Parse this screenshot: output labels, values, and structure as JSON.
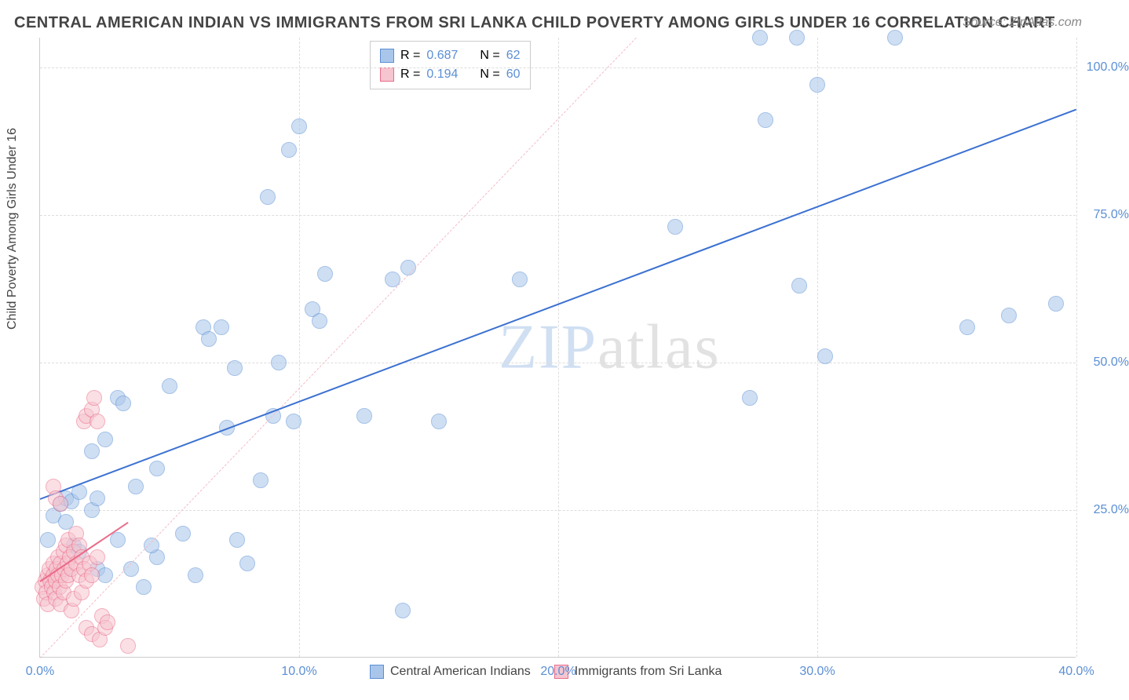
{
  "title": "CENTRAL AMERICAN INDIAN VS IMMIGRANTS FROM SRI LANKA CHILD POVERTY AMONG GIRLS UNDER 16 CORRELATION CHART",
  "source": "Source: ZipAtlas.com",
  "ylabel": "Child Poverty Among Girls Under 16",
  "watermark_a": "ZIP",
  "watermark_b": "atlas",
  "chart": {
    "type": "scatter",
    "xlim": [
      0,
      40
    ],
    "ylim": [
      0,
      105
    ],
    "xtick_step": 10,
    "ytick_step": 25,
    "xticks": [
      "0.0%",
      "10.0%",
      "20.0%",
      "30.0%",
      "40.0%"
    ],
    "yticks": [
      "25.0%",
      "50.0%",
      "75.0%",
      "100.0%"
    ],
    "ytick_values": [
      25,
      50,
      75,
      100
    ],
    "background_color": "#ffffff",
    "grid_color": "#dddddd",
    "axis_color": "#cccccc",
    "tick_label_color": "#5b8fd4",
    "point_radius": 10,
    "point_opacity": 0.55,
    "series": [
      {
        "name": "Central American Indians",
        "color_fill": "#a9c6ea",
        "color_stroke": "#5b8fd4",
        "r_label": "R =",
        "r_value": "0.687",
        "n_label": "N =",
        "n_value": "62",
        "trend": {
          "x1": 0,
          "y1": 27,
          "x2": 40,
          "y2": 93,
          "width": 2.5,
          "dash": "solid",
          "color": "#3b71d1"
        },
        "ref_line": {
          "x1": 0,
          "y1": 0,
          "x2": 23,
          "y2": 105,
          "width": 1,
          "dash": "dashed",
          "color": "#f4bcc6"
        },
        "points": [
          [
            0.3,
            20
          ],
          [
            0.5,
            24
          ],
          [
            0.8,
            26
          ],
          [
            1.0,
            27
          ],
          [
            1.2,
            26.5
          ],
          [
            1.0,
            23
          ],
          [
            1.5,
            28
          ],
          [
            1.3,
            19
          ],
          [
            1.5,
            18
          ],
          [
            2.0,
            25
          ],
          [
            2.2,
            27
          ],
          [
            2.0,
            35
          ],
          [
            2.5,
            37
          ],
          [
            2.2,
            15
          ],
          [
            2.5,
            14
          ],
          [
            3.0,
            44
          ],
          [
            3.2,
            43
          ],
          [
            3.0,
            20
          ],
          [
            3.7,
            29
          ],
          [
            3.5,
            15
          ],
          [
            4.5,
            17
          ],
          [
            4.3,
            19
          ],
          [
            4.5,
            32
          ],
          [
            4.0,
            12
          ],
          [
            5.0,
            46
          ],
          [
            5.5,
            21
          ],
          [
            6.0,
            14
          ],
          [
            6.3,
            56
          ],
          [
            6.5,
            54
          ],
          [
            7.0,
            56
          ],
          [
            7.5,
            49
          ],
          [
            7.2,
            39
          ],
          [
            7.6,
            20
          ],
          [
            8.0,
            16
          ],
          [
            8.5,
            30
          ],
          [
            8.8,
            78
          ],
          [
            9.0,
            41
          ],
          [
            9.2,
            50
          ],
          [
            9.6,
            86
          ],
          [
            9.8,
            40
          ],
          [
            10.0,
            90
          ],
          [
            10.5,
            59
          ],
          [
            10.8,
            57
          ],
          [
            11.0,
            65
          ],
          [
            12.5,
            41
          ],
          [
            13.6,
            64
          ],
          [
            14.0,
            8
          ],
          [
            14.2,
            66
          ],
          [
            15.4,
            40
          ],
          [
            18.5,
            64
          ],
          [
            24.5,
            73
          ],
          [
            27.4,
            44
          ],
          [
            27.8,
            105
          ],
          [
            28.0,
            91
          ],
          [
            29.2,
            105
          ],
          [
            29.3,
            63
          ],
          [
            30.0,
            97
          ],
          [
            30.3,
            51
          ],
          [
            33.0,
            105
          ],
          [
            35.8,
            56
          ],
          [
            37.4,
            58
          ],
          [
            39.2,
            60
          ]
        ]
      },
      {
        "name": "Immigrants from Sri Lanka",
        "color_fill": "#f6c5cf",
        "color_stroke": "#ea6c8a",
        "r_label": "R =",
        "r_value": "0.194",
        "n_label": "N =",
        "n_value": "60",
        "trend": {
          "x1": 0,
          "y1": 13,
          "x2": 3.4,
          "y2": 23,
          "width": 2,
          "dash": "solid",
          "color": "#ea6c8a"
        },
        "points": [
          [
            0.1,
            12
          ],
          [
            0.2,
            13
          ],
          [
            0.3,
            14
          ],
          [
            0.15,
            10
          ],
          [
            0.25,
            11
          ],
          [
            0.3,
            9
          ],
          [
            0.4,
            13
          ],
          [
            0.35,
            15
          ],
          [
            0.45,
            12
          ],
          [
            0.5,
            14
          ],
          [
            0.5,
            16
          ],
          [
            0.55,
            11
          ],
          [
            0.6,
            13
          ],
          [
            0.6,
            10
          ],
          [
            0.65,
            15
          ],
          [
            0.7,
            14
          ],
          [
            0.7,
            17
          ],
          [
            0.75,
            12
          ],
          [
            0.8,
            16
          ],
          [
            0.8,
            9
          ],
          [
            0.85,
            14
          ],
          [
            0.9,
            18
          ],
          [
            0.9,
            11
          ],
          [
            0.95,
            15
          ],
          [
            1.0,
            13
          ],
          [
            1.0,
            19
          ],
          [
            1.05,
            16
          ],
          [
            1.1,
            14
          ],
          [
            1.1,
            20
          ],
          [
            1.15,
            17
          ],
          [
            1.2,
            15
          ],
          [
            1.2,
            8
          ],
          [
            1.3,
            18
          ],
          [
            1.3,
            10
          ],
          [
            1.4,
            16
          ],
          [
            1.4,
            21
          ],
          [
            1.5,
            14
          ],
          [
            1.5,
            19
          ],
          [
            1.6,
            17
          ],
          [
            1.6,
            11
          ],
          [
            1.7,
            15
          ],
          [
            1.7,
            40
          ],
          [
            1.8,
            41
          ],
          [
            1.8,
            13
          ],
          [
            1.9,
            16
          ],
          [
            2.0,
            42
          ],
          [
            2.0,
            14
          ],
          [
            2.1,
            44
          ],
          [
            2.2,
            40
          ],
          [
            2.2,
            17
          ],
          [
            0.5,
            29
          ],
          [
            0.6,
            27
          ],
          [
            0.8,
            26
          ],
          [
            1.8,
            5
          ],
          [
            2.0,
            4
          ],
          [
            2.3,
            3
          ],
          [
            2.4,
            7
          ],
          [
            2.5,
            5
          ],
          [
            2.6,
            6
          ],
          [
            3.4,
            2
          ]
        ]
      }
    ],
    "legend_bottom": [
      {
        "label": "Central American Indians",
        "fill": "#a9c6ea",
        "stroke": "#5b8fd4"
      },
      {
        "label": "Immigrants from Sri Lanka",
        "fill": "#f6c5cf",
        "stroke": "#ea6c8a"
      }
    ]
  }
}
